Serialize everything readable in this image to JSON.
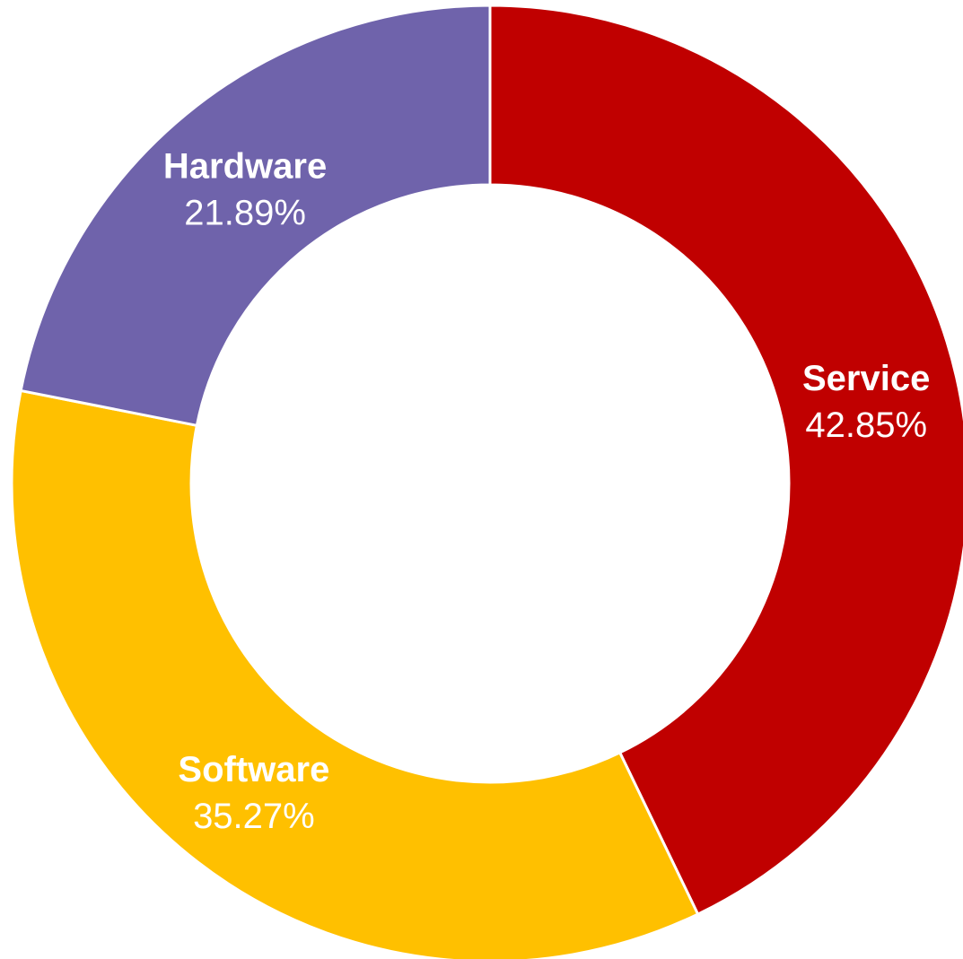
{
  "chart_data": {
    "type": "pie",
    "variant": "donut",
    "title": "",
    "slices": [
      {
        "name": "Service",
        "label": "Service",
        "value_label": "42.85%",
        "value": 42.85,
        "color": "#C00000"
      },
      {
        "name": "Software",
        "label": "Software",
        "value_label": "35.27%",
        "value": 35.27,
        "color": "#FFC000"
      },
      {
        "name": "Hardware",
        "label": "Hardware",
        "value_label": "21.89%",
        "value": 21.89,
        "color": "#6F63AB"
      }
    ],
    "start_angle": "12 o'clock",
    "direction": "clockwise",
    "legend": "none",
    "separator_color": "#ffffff",
    "label_color": "#ffffff"
  }
}
